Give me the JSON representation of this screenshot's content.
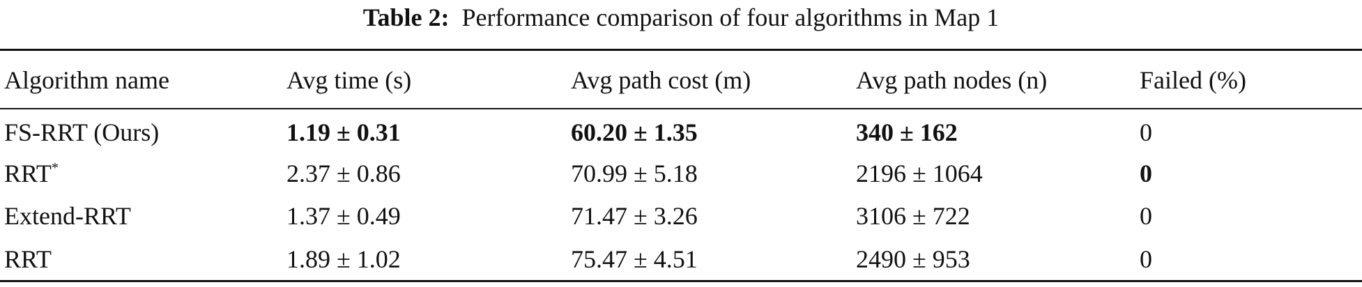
{
  "caption": {
    "label": "Table 2:",
    "text": "Performance comparison of four algorithms in Map 1"
  },
  "table": {
    "header": [
      "Algorithm name",
      "Avg time (s)",
      "Avg path cost (m)",
      "Avg path nodes (n)",
      "Failed (%)"
    ],
    "rows": [
      [
        "FS-RRT (Ours)",
        "1.19 ± 0.31",
        "60.20 ± 1.35",
        "340 ± 162",
        "0"
      ],
      [
        {
          "base": "RRT",
          "sup": "*"
        },
        "2.37 ± 0.86",
        "70.99 ± 5.18",
        "2196 ± 1064",
        "0"
      ],
      [
        "Extend-RRT",
        "1.37 ± 0.49",
        "71.47 ± 3.26",
        "3106 ± 722",
        "0"
      ],
      [
        "RRT",
        "1.89 ± 1.02",
        "75.47 ± 4.51",
        "2490 ± 953",
        "0"
      ]
    ]
  }
}
